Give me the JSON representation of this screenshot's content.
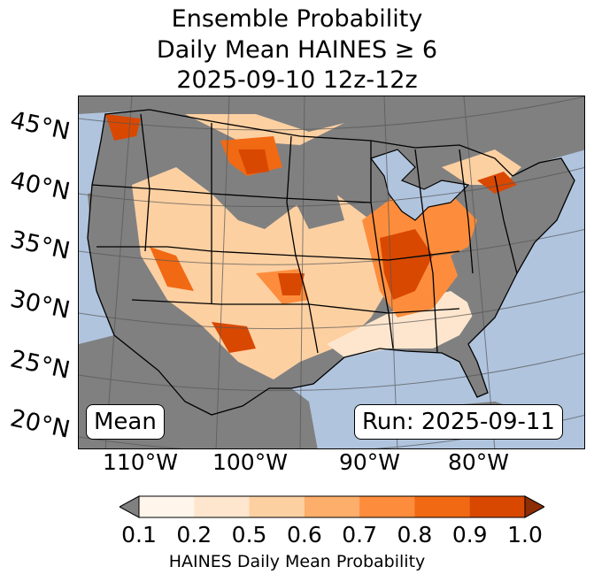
{
  "title": {
    "line1": "Ensemble Probability",
    "line2": "Daily Mean HAINES ≥ 6",
    "line3": "2025-09-10 12z-12z"
  },
  "map": {
    "ocean_color": "#b0c4de",
    "land_low_color": "#808080",
    "lat_labels": [
      "45°N",
      "40°N",
      "35°N",
      "30°N",
      "25°N",
      "20°N"
    ],
    "lon_labels": [
      "110°W",
      "100°W",
      "90°W",
      "80°W"
    ],
    "stat_label": "Mean",
    "run_label": "Run: 2025-09-11"
  },
  "colorbar": {
    "label": "HAINES Daily Mean Probability",
    "ticks": [
      "0.1",
      "0.2",
      "0.5",
      "0.6",
      "0.7",
      "0.8",
      "0.9",
      "1.0"
    ],
    "colors": [
      "#fff5eb",
      "#fee6ce",
      "#fdd0a2",
      "#fdae6b",
      "#fd8d3c",
      "#f16913",
      "#d94801"
    ],
    "under_color": "#808080",
    "over_color": "#8c2d04"
  }
}
